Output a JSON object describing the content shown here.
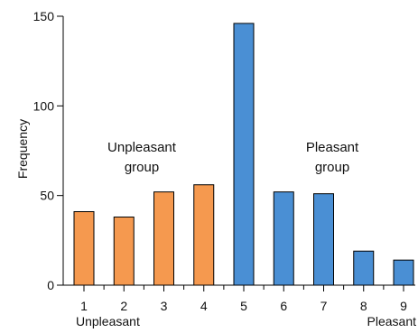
{
  "chart_data": {
    "type": "bar",
    "categories": [
      "1",
      "2",
      "3",
      "4",
      "5",
      "6",
      "7",
      "8",
      "9"
    ],
    "values": [
      41,
      38,
      52,
      56,
      146,
      52,
      51,
      19,
      14
    ],
    "groups": [
      "unpleasant",
      "unpleasant",
      "unpleasant",
      "unpleasant",
      "pleasant",
      "pleasant",
      "pleasant",
      "pleasant",
      "pleasant"
    ],
    "group_colors": {
      "unpleasant": "#F5994F",
      "pleasant": "#4A8FD4"
    },
    "ylabel": "Frequency",
    "ylim": [
      0,
      150
    ],
    "yticks": [
      0,
      50,
      100,
      150
    ],
    "grid": false,
    "x_end_labels": {
      "left": "Unpleasant",
      "right": "Pleasant"
    },
    "annotations": [
      {
        "id": "unpleasant",
        "lines": [
          "Unpleasant",
          "group"
        ]
      },
      {
        "id": "pleasant",
        "lines": [
          "Pleasant",
          "group"
        ]
      }
    ]
  }
}
